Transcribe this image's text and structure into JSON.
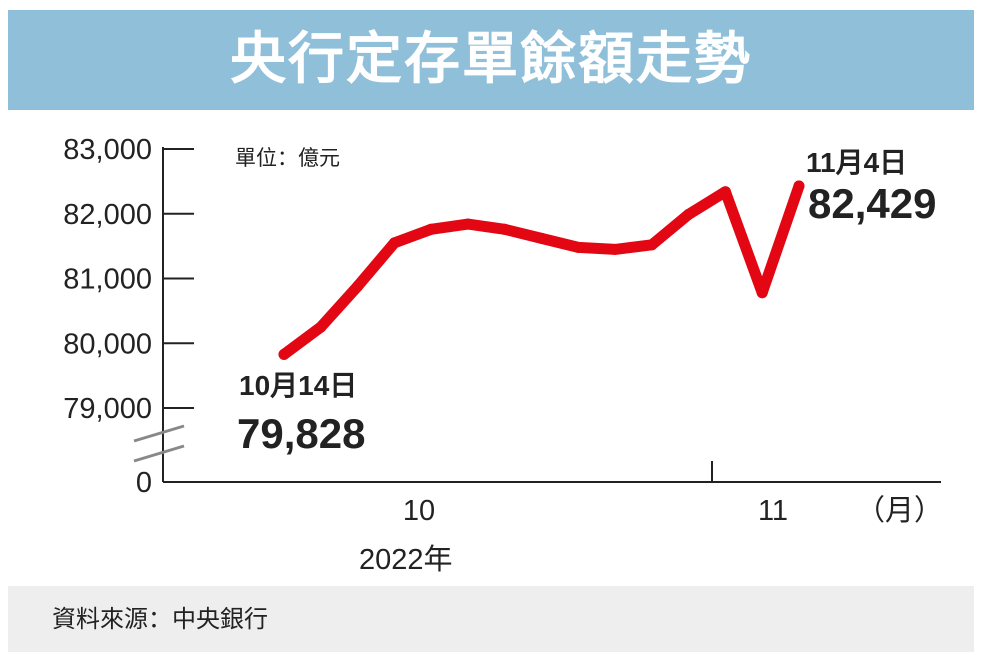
{
  "title": "央行定存單餘額走勢",
  "source": "資料來源：中央銀行",
  "colors": {
    "header_bg": "#8fbfd9",
    "line": "#e30613",
    "footer_bg": "#eeeeee",
    "text": "#222222"
  },
  "chart_data": {
    "type": "line",
    "title": "央行定存單餘額走勢",
    "unit_label": "單位：億元",
    "y_ticks": [
      "83,000",
      "82,000",
      "81,000",
      "80,000",
      "79,000",
      "0"
    ],
    "ylim": [
      79000,
      83000
    ],
    "y_axis_break": true,
    "x_ticks": [
      "10",
      "11"
    ],
    "x_unit": "（月）",
    "year_label": "2022年",
    "grid": false,
    "series": [
      {
        "values": [
          79828,
          80250,
          80880,
          81550,
          81760,
          81840,
          81760,
          81620,
          81480,
          81450,
          81520,
          81990,
          82340,
          80780,
          82429
        ]
      }
    ],
    "annotations": [
      {
        "date": "10月14日",
        "value": "79,828"
      },
      {
        "date": "11月4日",
        "value": "82,429"
      }
    ]
  }
}
